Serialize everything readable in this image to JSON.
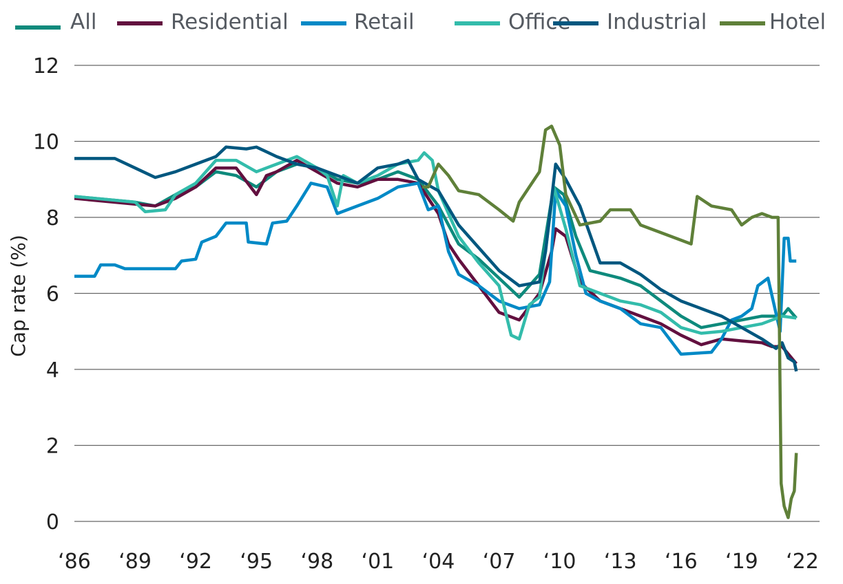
{
  "chart_data": {
    "type": "line",
    "title": "",
    "xlabel": "",
    "ylabel": "Cap rate (%)",
    "xlim": [
      1986,
      2022
    ],
    "ylim": [
      0,
      12
    ],
    "grid": true,
    "legend_placement": "top",
    "x_ticks": [
      1986,
      1989,
      1992,
      1995,
      1998,
      2001,
      2004,
      2007,
      2010,
      2013,
      2016,
      2019,
      2022
    ],
    "x_tick_labels": [
      "‘86",
      "‘89",
      "‘92",
      "‘95",
      "‘98",
      "‘01",
      "‘04",
      "‘07",
      "‘10",
      "‘13",
      "‘16",
      "‘19",
      "‘22"
    ],
    "y_ticks": [
      0,
      2,
      4,
      6,
      8,
      10,
      12
    ],
    "y_tick_labels": [
      "0",
      "2",
      "4",
      "6",
      "8",
      "10",
      "12"
    ],
    "series": [
      {
        "name": "All",
        "color": "#0e8a7c",
        "points": [
          [
            1986,
            8.55
          ],
          [
            1989,
            8.4
          ],
          [
            1990,
            8.3
          ],
          [
            1991,
            8.6
          ],
          [
            1992,
            8.8
          ],
          [
            1993,
            9.2
          ],
          [
            1994,
            9.1
          ],
          [
            1995,
            8.8
          ],
          [
            1996,
            9.2
          ],
          [
            1997,
            9.4
          ],
          [
            1998,
            9.3
          ],
          [
            1999,
            9.0
          ],
          [
            2000,
            8.9
          ],
          [
            2001,
            9.0
          ],
          [
            2002,
            9.2
          ],
          [
            2003,
            9.0
          ],
          [
            2004,
            8.3
          ],
          [
            2005,
            7.3
          ],
          [
            2006,
            6.9
          ],
          [
            2007,
            6.4
          ],
          [
            2008,
            5.9
          ],
          [
            2009,
            6.5
          ],
          [
            2009.7,
            8.8
          ],
          [
            2010.2,
            8.6
          ],
          [
            2010.8,
            7.5
          ],
          [
            2011.5,
            6.6
          ],
          [
            2013,
            6.4
          ],
          [
            2014,
            6.2
          ],
          [
            2015,
            5.8
          ],
          [
            2016,
            5.4
          ],
          [
            2017,
            5.1
          ],
          [
            2018,
            5.2
          ],
          [
            2019,
            5.3
          ],
          [
            2020,
            5.4
          ],
          [
            2021,
            5.4
          ],
          [
            2021.3,
            5.6
          ],
          [
            2021.7,
            5.35
          ]
        ]
      },
      {
        "name": "Residential",
        "color": "#62103f",
        "points": [
          [
            1986,
            8.5
          ],
          [
            1989,
            8.35
          ],
          [
            1990,
            8.3
          ],
          [
            1991,
            8.5
          ],
          [
            1992,
            8.8
          ],
          [
            1993,
            9.3
          ],
          [
            1994,
            9.3
          ],
          [
            1995,
            8.6
          ],
          [
            1995.5,
            9.1
          ],
          [
            1996,
            9.2
          ],
          [
            1997,
            9.5
          ],
          [
            1998,
            9.2
          ],
          [
            1999,
            8.9
          ],
          [
            2000,
            8.8
          ],
          [
            2001,
            9.0
          ],
          [
            2002,
            9.0
          ],
          [
            2003,
            8.9
          ],
          [
            2004,
            8.1
          ],
          [
            2004.5,
            7.3
          ],
          [
            2005,
            6.9
          ],
          [
            2006,
            6.2
          ],
          [
            2007,
            5.5
          ],
          [
            2008,
            5.3
          ],
          [
            2009,
            6.0
          ],
          [
            2009.6,
            7.1
          ],
          [
            2009.8,
            7.7
          ],
          [
            2010.3,
            7.5
          ],
          [
            2011,
            6.3
          ],
          [
            2012,
            5.8
          ],
          [
            2013,
            5.6
          ],
          [
            2014,
            5.4
          ],
          [
            2015,
            5.2
          ],
          [
            2016,
            4.9
          ],
          [
            2017,
            4.65
          ],
          [
            2018,
            4.8
          ],
          [
            2019,
            4.75
          ],
          [
            2020,
            4.7
          ],
          [
            2020.5,
            4.6
          ],
          [
            2021,
            4.6
          ],
          [
            2021.7,
            4.15
          ]
        ]
      },
      {
        "name": "Retail",
        "color": "#0089c6",
        "points": [
          [
            1986,
            6.45
          ],
          [
            1987,
            6.45
          ],
          [
            1987.3,
            6.75
          ],
          [
            1988,
            6.75
          ],
          [
            1988.5,
            6.65
          ],
          [
            1991,
            6.65
          ],
          [
            1991.3,
            6.85
          ],
          [
            1992,
            6.9
          ],
          [
            1992.3,
            7.35
          ],
          [
            1993,
            7.5
          ],
          [
            1993.5,
            7.85
          ],
          [
            1994.5,
            7.85
          ],
          [
            1994.6,
            7.35
          ],
          [
            1995.5,
            7.3
          ],
          [
            1995.8,
            7.85
          ],
          [
            1996.5,
            7.9
          ],
          [
            1997,
            8.3
          ],
          [
            1997.7,
            8.9
          ],
          [
            1998.5,
            8.8
          ],
          [
            1999,
            8.1
          ],
          [
            2000,
            8.3
          ],
          [
            2001,
            8.5
          ],
          [
            2002,
            8.8
          ],
          [
            2003,
            8.9
          ],
          [
            2003.5,
            8.2
          ],
          [
            2004,
            8.3
          ],
          [
            2004.5,
            7.1
          ],
          [
            2005,
            6.5
          ],
          [
            2006,
            6.2
          ],
          [
            2007,
            5.8
          ],
          [
            2008,
            5.6
          ],
          [
            2009,
            5.7
          ],
          [
            2009.5,
            6.3
          ],
          [
            2009.8,
            8.7
          ],
          [
            2010.3,
            8.3
          ],
          [
            2010.8,
            7.0
          ],
          [
            2011.3,
            6.0
          ],
          [
            2012,
            5.8
          ],
          [
            2013,
            5.6
          ],
          [
            2014,
            5.2
          ],
          [
            2015,
            5.1
          ],
          [
            2016,
            4.4
          ],
          [
            2017.5,
            4.45
          ],
          [
            2018,
            4.8
          ],
          [
            2018.5,
            5.3
          ],
          [
            2019,
            5.4
          ],
          [
            2019.5,
            5.6
          ],
          [
            2019.8,
            6.2
          ],
          [
            2020.3,
            6.4
          ],
          [
            2020.9,
            5.0
          ],
          [
            2021.1,
            7.45
          ],
          [
            2021.3,
            7.45
          ],
          [
            2021.4,
            6.85
          ],
          [
            2021.7,
            6.85
          ]
        ]
      },
      {
        "name": "Office",
        "color": "#33bcab",
        "points": [
          [
            1986,
            8.55
          ],
          [
            1989,
            8.4
          ],
          [
            1989.5,
            8.15
          ],
          [
            1990.5,
            8.2
          ],
          [
            1991,
            8.6
          ],
          [
            1992,
            8.9
          ],
          [
            1993,
            9.5
          ],
          [
            1994,
            9.5
          ],
          [
            1995,
            9.2
          ],
          [
            1996,
            9.4
          ],
          [
            1997,
            9.6
          ],
          [
            1998,
            9.3
          ],
          [
            1998.5,
            9.1
          ],
          [
            1999,
            8.3
          ],
          [
            1999.3,
            9.1
          ],
          [
            2000,
            8.9
          ],
          [
            2001,
            9.1
          ],
          [
            2002,
            9.4
          ],
          [
            2003,
            9.5
          ],
          [
            2003.3,
            9.7
          ],
          [
            2003.7,
            9.5
          ],
          [
            2004,
            8.7
          ],
          [
            2005,
            7.5
          ],
          [
            2006,
            6.8
          ],
          [
            2007,
            6.2
          ],
          [
            2007.6,
            4.9
          ],
          [
            2008,
            4.8
          ],
          [
            2008.5,
            5.7
          ],
          [
            2009,
            5.9
          ],
          [
            2009.7,
            8.8
          ],
          [
            2010.3,
            7.7
          ],
          [
            2011,
            6.2
          ],
          [
            2012,
            6.0
          ],
          [
            2013,
            5.8
          ],
          [
            2014,
            5.7
          ],
          [
            2015,
            5.5
          ],
          [
            2016,
            5.1
          ],
          [
            2017,
            4.95
          ],
          [
            2018,
            5.0
          ],
          [
            2019,
            5.1
          ],
          [
            2020,
            5.2
          ],
          [
            2020.5,
            5.3
          ],
          [
            2021,
            5.4
          ],
          [
            2021.7,
            5.35
          ]
        ]
      },
      {
        "name": "Industrial",
        "color": "#00577f",
        "points": [
          [
            1986,
            9.55
          ],
          [
            1988,
            9.55
          ],
          [
            1989,
            9.3
          ],
          [
            1990,
            9.05
          ],
          [
            1991,
            9.2
          ],
          [
            1992,
            9.4
          ],
          [
            1993,
            9.6
          ],
          [
            1993.5,
            9.85
          ],
          [
            1994.5,
            9.8
          ],
          [
            1995,
            9.85
          ],
          [
            1996,
            9.6
          ],
          [
            1997,
            9.4
          ],
          [
            1998,
            9.3
          ],
          [
            1999,
            9.1
          ],
          [
            2000,
            8.9
          ],
          [
            2001,
            9.3
          ],
          [
            2002,
            9.4
          ],
          [
            2002.5,
            9.5
          ],
          [
            2003,
            9.0
          ],
          [
            2004,
            8.7
          ],
          [
            2005,
            7.8
          ],
          [
            2006,
            7.2
          ],
          [
            2007,
            6.6
          ],
          [
            2008,
            6.2
          ],
          [
            2009,
            6.3
          ],
          [
            2009.3,
            7.1
          ],
          [
            2009.8,
            9.4
          ],
          [
            2010.3,
            9.0
          ],
          [
            2011,
            8.3
          ],
          [
            2012,
            6.8
          ],
          [
            2013,
            6.8
          ],
          [
            2014,
            6.5
          ],
          [
            2015,
            6.1
          ],
          [
            2016,
            5.8
          ],
          [
            2017,
            5.6
          ],
          [
            2018,
            5.4
          ],
          [
            2019,
            5.1
          ],
          [
            2020,
            4.8
          ],
          [
            2020.7,
            4.55
          ],
          [
            2021,
            4.7
          ],
          [
            2021.3,
            4.3
          ],
          [
            2021.6,
            4.2
          ],
          [
            2021.7,
            3.95
          ]
        ]
      },
      {
        "name": "Hotel",
        "color": "#5f8039",
        "points": [
          [
            2003.2,
            8.8
          ],
          [
            2003.5,
            8.8
          ],
          [
            2004,
            9.4
          ],
          [
            2004.5,
            9.1
          ],
          [
            2005,
            8.7
          ],
          [
            2006,
            8.6
          ],
          [
            2007,
            8.2
          ],
          [
            2007.7,
            7.9
          ],
          [
            2008,
            8.4
          ],
          [
            2008.5,
            8.8
          ],
          [
            2009,
            9.2
          ],
          [
            2009.3,
            10.3
          ],
          [
            2009.6,
            10.4
          ],
          [
            2010,
            9.9
          ],
          [
            2010.3,
            8.6
          ],
          [
            2011,
            7.8
          ],
          [
            2012,
            7.9
          ],
          [
            2012.5,
            8.2
          ],
          [
            2013.5,
            8.2
          ],
          [
            2014,
            7.8
          ],
          [
            2015,
            7.6
          ],
          [
            2016,
            7.4
          ],
          [
            2016.5,
            7.3
          ],
          [
            2016.8,
            8.55
          ],
          [
            2017.5,
            8.3
          ],
          [
            2018.5,
            8.2
          ],
          [
            2019,
            7.8
          ],
          [
            2019.5,
            8.0
          ],
          [
            2020,
            8.1
          ],
          [
            2020.5,
            8.0
          ],
          [
            2020.8,
            8.0
          ],
          [
            2020.95,
            1.0
          ],
          [
            2021.1,
            0.4
          ],
          [
            2021.3,
            0.1
          ],
          [
            2021.45,
            0.6
          ],
          [
            2021.6,
            0.8
          ],
          [
            2021.7,
            1.8
          ]
        ]
      }
    ]
  }
}
